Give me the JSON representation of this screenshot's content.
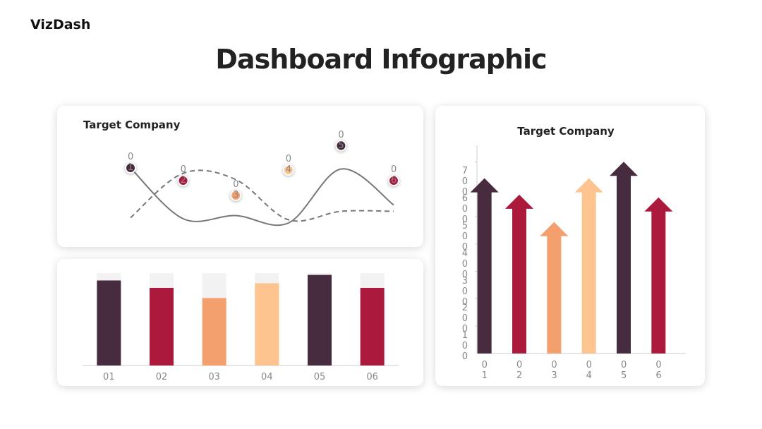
{
  "header": {
    "brand": "VizDash",
    "title": "Dashboard Infographic"
  },
  "chart_data": [
    {
      "type": "line",
      "title": "Target Company",
      "categories": [
        "01",
        "02",
        "03",
        "04",
        "05",
        "06"
      ],
      "ylim": [
        0,
        100
      ],
      "series": [
        {
          "color": "#777777",
          "dashed": false,
          "values": [
            68,
            20,
            23,
            16,
            67,
            33
          ]
        },
        {
          "color": "#777777",
          "dashed": true,
          "values": [
            21,
            63,
            57,
            19,
            27,
            27
          ]
        }
      ],
      "markers": {
        "values": [
          68,
          56,
          42,
          66,
          89,
          56
        ],
        "colors": [
          "#472b3f",
          "#ab1a3c",
          "#f4a06e",
          "#fdc48f",
          "#472b3f",
          "#ab1a3c"
        ]
      }
    },
    {
      "type": "bar",
      "categories": [
        "01",
        "02",
        "03",
        "04",
        "05",
        "06"
      ],
      "values": [
        92,
        84,
        73,
        89,
        98,
        84
      ],
      "colors": [
        "#472b3f",
        "#ab1a3c",
        "#f4a06e",
        "#fdc48f",
        "#472b3f",
        "#ab1a3c"
      ],
      "track_color": "#f2f2f2",
      "ylim": [
        0,
        100
      ]
    },
    {
      "type": "arrow",
      "title": "Target Company",
      "categories": [
        "01",
        "02",
        "03",
        "04",
        "05",
        "06"
      ],
      "values": [
        640,
        580,
        480,
        640,
        700,
        570
      ],
      "colors": [
        "#472b3f",
        "#ab1a3c",
        "#f4a06e",
        "#fdc48f",
        "#472b3f",
        "#ab1a3c"
      ],
      "ylim": [
        0,
        760
      ],
      "yticks": [
        100,
        200,
        300,
        400,
        500,
        600,
        700
      ]
    }
  ]
}
